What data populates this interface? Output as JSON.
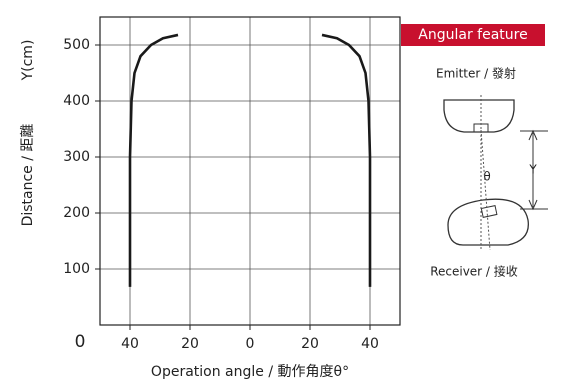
{
  "chart_data": {
    "type": "line",
    "x_label": "Operation angle / 動作角度θ°",
    "y_label": "Distance / 距離",
    "y_unit_label": "Y(cm)",
    "xlim": [
      -50,
      50
    ],
    "xticks": [
      {
        "value": -40,
        "label": "40"
      },
      {
        "value": -20,
        "label": "20"
      },
      0,
      20,
      40
    ],
    "ylim": [
      0,
      550
    ],
    "yticks": [
      0,
      100,
      200,
      300,
      400,
      500
    ],
    "grid": true,
    "series": [
      {
        "color": "#1a1a1a",
        "x": [
          -40,
          -40,
          -39.5,
          -38.5,
          -36.5,
          -33,
          -29,
          -24
        ],
        "values": [
          68,
          300,
          400,
          450,
          480,
          500,
          512,
          518
        ]
      },
      {
        "color": "#1a1a1a",
        "x": [
          40,
          40,
          39.5,
          38.5,
          36.5,
          33,
          29,
          24
        ],
        "values": [
          68,
          300,
          400,
          450,
          480,
          500,
          512,
          518
        ]
      }
    ]
  },
  "diagram": {
    "title": "Angular feature",
    "emitter": "Emitter / 發射",
    "receiver": "Receiver / 接收",
    "angle": "θ",
    "distance": "Y"
  }
}
